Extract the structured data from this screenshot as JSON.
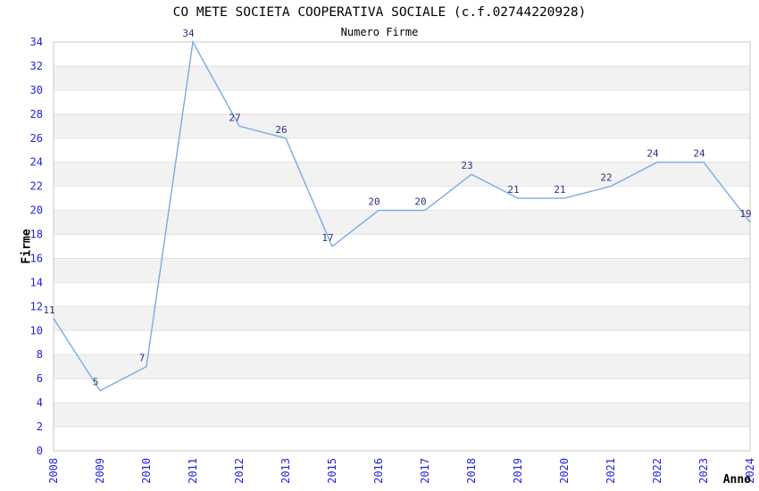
{
  "page": {
    "background": "#ffffff"
  },
  "chart_data": {
    "type": "line",
    "title": "CO METE SOCIETA COOPERATIVA SOCIALE (c.f.02744220928)",
    "subtitle": "Numero Firme",
    "xlabel": "Anno",
    "ylabel": "Firme",
    "categories": [
      "2008",
      "2009",
      "2010",
      "2011",
      "2012",
      "2013",
      "2015",
      "2016",
      "2017",
      "2018",
      "2019",
      "2020",
      "2021",
      "2022",
      "2023",
      "2024"
    ],
    "values": [
      11,
      5,
      7,
      34,
      27,
      26,
      17,
      20,
      20,
      23,
      21,
      21,
      22,
      24,
      24,
      19
    ],
    "ylim": [
      0,
      34
    ],
    "ytick_step": 2,
    "grid": "horizontal-bands",
    "legend": "none",
    "point_markers": false,
    "x_tick_rotation": -90,
    "colors": {
      "line": "#7aabe2",
      "tick_label": "#2323d7",
      "data_label": "#2d2d7f",
      "band_light": "#ffffff",
      "band_dark": "#f2f2f2",
      "gridline": "#e2e2e2",
      "plot_border": "#c8c8c8",
      "title_text": "#000000"
    }
  }
}
